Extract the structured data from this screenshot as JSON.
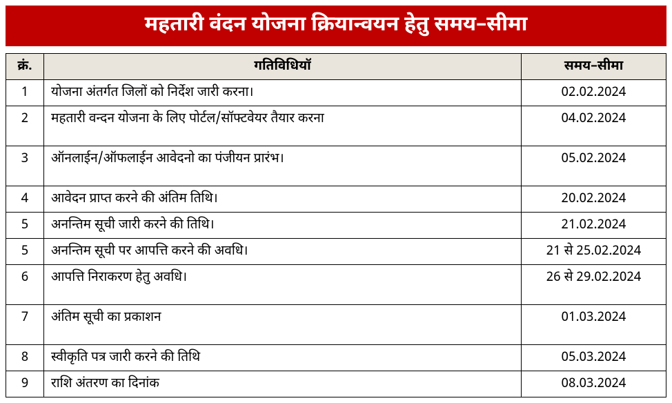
{
  "title": "महतारी वंदन योजना क्रियान्वयन हेतु समय–सीमा",
  "table": {
    "headers": {
      "sn": "क्रं.",
      "activity": "गतिविधियॉ",
      "deadline": "समय–सीमा"
    },
    "rows": [
      {
        "sn": "1",
        "activity": "योजना अंतर्गत जिलों को निर्देश जारी करना।",
        "deadline": "02.02.2024",
        "tall": false
      },
      {
        "sn": "2",
        "activity": "महतारी वन्दन योजना के लिए पोर्टल/सॉफ्टवेयर तैयार करना",
        "deadline": "04.02.2024",
        "tall": true
      },
      {
        "sn": "3",
        "activity": "ऑनलाईन/ऑफलाईन आवेदनो का पंजीयन प्रारंभ।",
        "deadline": "05.02.2024",
        "tall": true
      },
      {
        "sn": "4",
        "activity": "आवेदन प्राप्त करने की अंतिम तिथि।",
        "deadline": "20.02.2024",
        "tall": false
      },
      {
        "sn": "5",
        "activity": "अनन्तिम सूची जारी करने की तिथि।",
        "deadline": "21.02.2024",
        "tall": false
      },
      {
        "sn": "5",
        "activity": "अनन्तिम सूची पर आपत्ति करने की अवधि।",
        "deadline": "21 से 25.02.2024",
        "tall": false
      },
      {
        "sn": "6",
        "activity": "आपत्ति निराकरण हेतु अवधि।",
        "deadline": "26 से 29.02.2024",
        "tall": true
      },
      {
        "sn": "7",
        "activity": "अंतिम सूची का प्रकाशन",
        "deadline": "01.03.2024",
        "tall": true
      },
      {
        "sn": "8",
        "activity": "स्वीकृति पत्र जारी करने की तिथि",
        "deadline": "05.03.2024",
        "tall": false
      },
      {
        "sn": "9",
        "activity": "राशि अंतरण का दिनांक",
        "deadline": "08.03.2024",
        "tall": false
      }
    ]
  },
  "styling": {
    "title_bg": "#c00000",
    "title_fg": "#ffffff",
    "header_bg": "#e9e5dc",
    "border_color": "#000000",
    "page_bg": "#ffffff",
    "title_fontsize": 30,
    "cell_fontsize": 19,
    "col_widths": {
      "sn": 55,
      "deadline": 210
    }
  }
}
